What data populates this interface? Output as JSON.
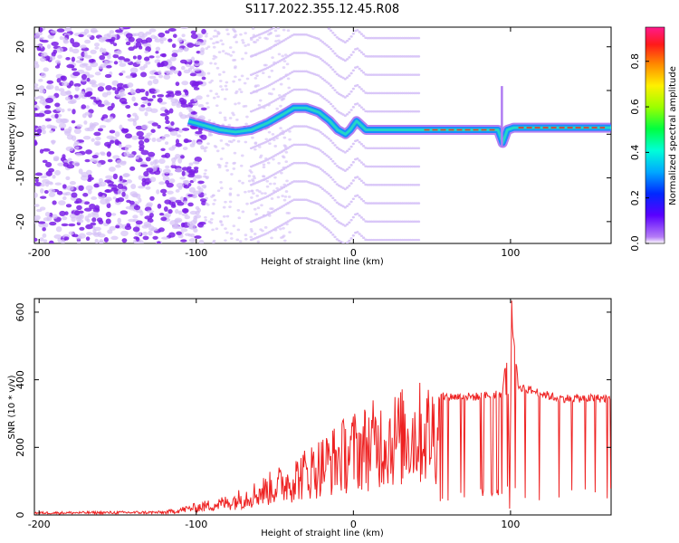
{
  "figure": {
    "title": "S117.2022.355.12.45.R08"
  },
  "colors": {
    "snr_line": "#ee2222",
    "dot_low": "#d6c2f7",
    "dot_high": "#7b1ee6",
    "spectral_ridge": "#1a8cff",
    "ridge_core": "#22d6c8",
    "ridge_peak": "#e8322a"
  },
  "colorbar": {
    "label": "Normalized spectral amplitude",
    "ticks": [
      "0.0",
      "0.2",
      "0.4",
      "0.6",
      "0.8"
    ],
    "colormap": "hsv-rainbow",
    "range": [
      0,
      0.95
    ]
  },
  "chart_data": [
    {
      "type": "heatmap",
      "xlabel": "Height of straight line (km)",
      "ylabel": "Frequency (Hz)",
      "xlim": [
        -203,
        164
      ],
      "ylim": [
        -25,
        24.5
      ],
      "x_ticks": [
        -200,
        -100,
        0,
        100
      ],
      "y_ticks": [
        -20,
        -10,
        0,
        10,
        20
      ],
      "x_tick_labels": [
        "-200",
        "-100",
        "0",
        "100"
      ],
      "y_tick_labels": [
        "-20",
        "-10",
        "0",
        "10",
        "20"
      ],
      "ridge": {
        "x": [
          -105,
          -95,
          -85,
          -75,
          -65,
          -55,
          -45,
          -38,
          -30,
          -22,
          -15,
          -10,
          -5,
          -2,
          2,
          5,
          8,
          12,
          20,
          40,
          60,
          80,
          92,
          95,
          98,
          102,
          120,
          140,
          164
        ],
        "y": [
          3,
          2,
          1,
          0.5,
          1,
          2.5,
          4.5,
          6,
          6,
          5,
          3,
          1,
          0,
          1,
          3,
          2,
          1,
          1,
          1,
          1,
          1,
          1,
          1,
          -2,
          1,
          1.5,
          1.5,
          1.5,
          1.5
        ]
      },
      "harmonic_spacing_hz": 4.2,
      "harmonics_x_range": [
        -65,
        42
      ],
      "noise_x_range": [
        -203,
        -95
      ]
    },
    {
      "type": "line",
      "xlabel": "Height of straight line (km)",
      "ylabel": "SNR (10 * v/v)",
      "xlim": [
        -203,
        164
      ],
      "ylim": [
        0,
        640
      ],
      "x_ticks": [
        -200,
        -100,
        0,
        100
      ],
      "y_ticks": [
        0,
        200,
        400,
        600
      ],
      "x_tick_labels": [
        "-200",
        "-100",
        "0",
        "100"
      ],
      "y_tick_labels": [
        "0",
        "200",
        "400",
        "600"
      ],
      "envelope": {
        "x": [
          -203,
          -120,
          -100,
          -80,
          -60,
          -40,
          -20,
          0,
          20,
          40,
          54,
          56,
          80,
          95,
          100,
          105,
          130,
          164
        ],
        "y": [
          8,
          10,
          30,
          50,
          90,
          140,
          200,
          260,
          300,
          330,
          340,
          350,
          350,
          360,
          600,
          380,
          345,
          345
        ]
      }
    }
  ]
}
